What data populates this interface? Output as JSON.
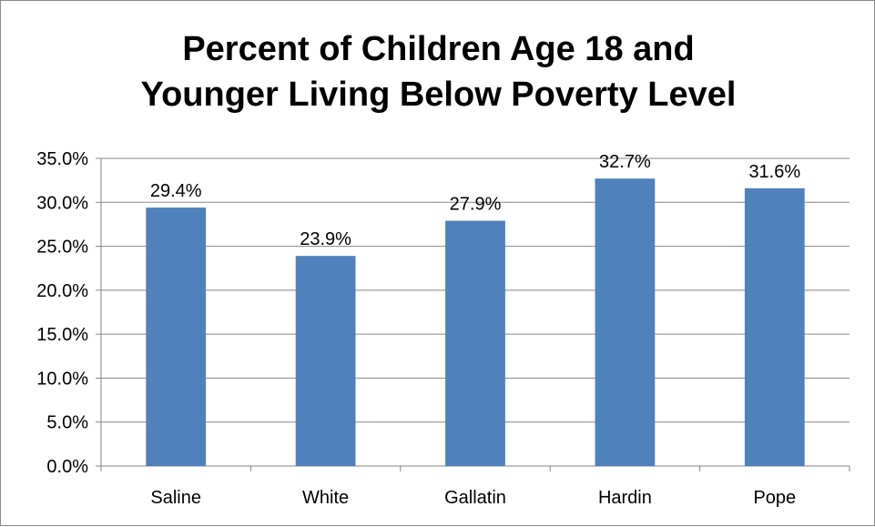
{
  "chart_data": {
    "type": "bar",
    "title_lines": [
      "Percent of Children Age 18 and",
      "Younger Living Below Poverty Level"
    ],
    "categories": [
      "Saline",
      "White",
      "Gallatin",
      "Hardin",
      "Pope"
    ],
    "values": [
      29.4,
      23.9,
      27.9,
      32.7,
      31.6
    ],
    "data_labels": [
      "29.4%",
      "23.9%",
      "27.9%",
      "32.7%",
      "31.6%"
    ],
    "y_ticks": [
      "0.0%",
      "5.0%",
      "10.0%",
      "15.0%",
      "20.0%",
      "25.0%",
      "30.0%",
      "35.0%"
    ],
    "ylim": [
      0,
      35
    ],
    "y_step": 5,
    "grid": true,
    "legend": "none",
    "xlabel": "",
    "ylabel": "",
    "colors": {
      "bar": "#4f81bd",
      "grid": "#868686",
      "axis": "#868686"
    }
  }
}
